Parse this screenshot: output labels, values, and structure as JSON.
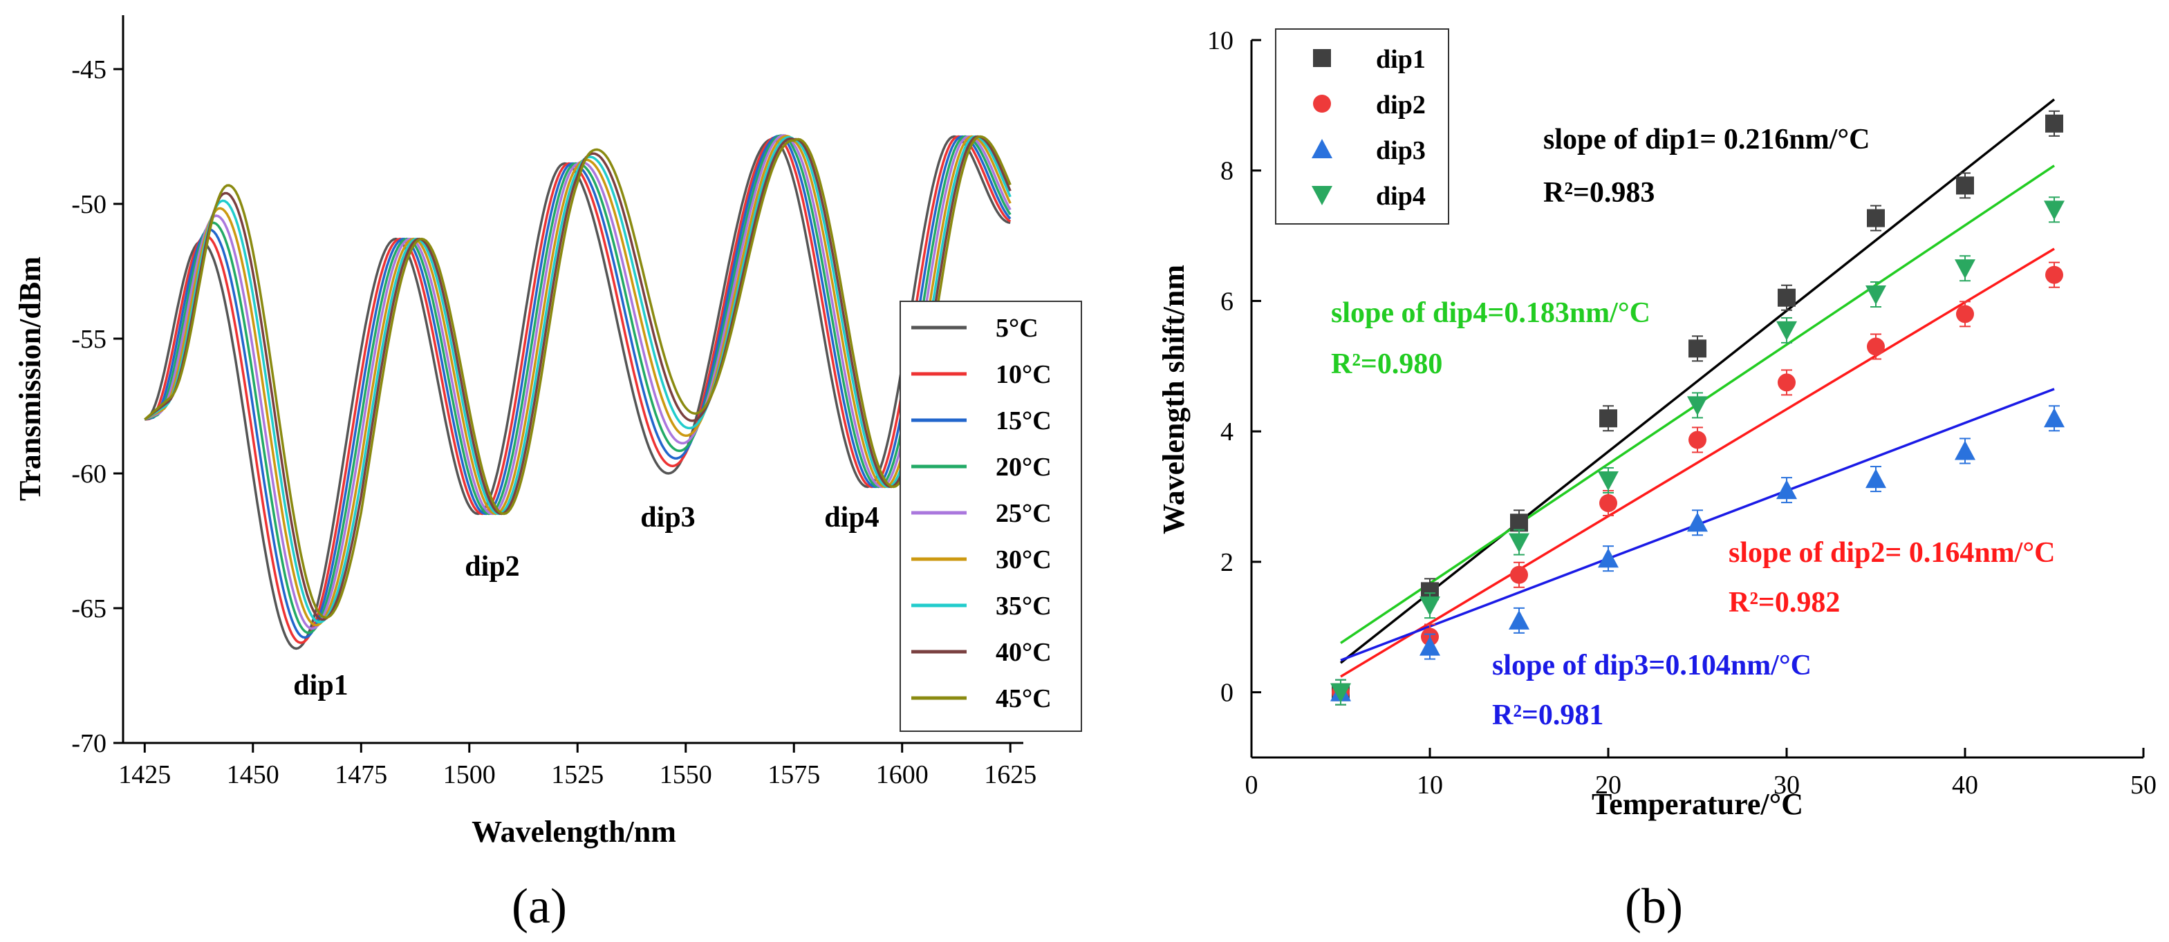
{
  "colors": {
    "dip1": "#404040",
    "dip2": "#ee3a3a",
    "dip3": "#2a72dd",
    "dip4": "#2aa860",
    "fit1": "#000000",
    "fit2": "#ff1a1a",
    "fit3": "#1a1ae6",
    "fit4": "#22cc22"
  },
  "panels": {
    "a": {
      "label": "(a)"
    },
    "b": {
      "label": "(b)"
    }
  },
  "chart_data": [
    {
      "type": "line",
      "xlabel": "Wavelength/nm",
      "ylabel": "Transmission/dBm",
      "xlim": [
        1420,
        1628
      ],
      "ylim": [
        -70,
        -43
      ],
      "xticks": [
        1425,
        1450,
        1475,
        1500,
        1525,
        1550,
        1575,
        1600,
        1625
      ],
      "yticks": [
        -70,
        -65,
        -60,
        -55,
        -50,
        -45
      ],
      "legend": "right",
      "annotations": [
        "dip1",
        "dip2",
        "dip3",
        "dip4"
      ],
      "series": [
        {
          "name": "5°C",
          "color": "#555555",
          "shift": 0.0
        },
        {
          "name": "10°C",
          "color": "#ee3333",
          "shift": 1.0
        },
        {
          "name": "15°C",
          "color": "#2266cc",
          "shift": 1.8
        },
        {
          "name": "20°C",
          "color": "#22aa66",
          "shift": 2.6
        },
        {
          "name": "25°C",
          "color": "#aa77dd",
          "shift": 3.3
        },
        {
          "name": "30°C",
          "color": "#cc9911",
          "shift": 4.1
        },
        {
          "name": "35°C",
          "color": "#22cccc",
          "shift": 4.8
        },
        {
          "name": "40°C",
          "color": "#7a4040",
          "shift": 5.4
        },
        {
          "name": "45°C",
          "color": "#8a8a10",
          "shift": 6.0
        }
      ],
      "base_shape": {
        "peaks": [
          [
            1425,
            -58.0
          ],
          [
            1438,
            -51.4
          ],
          [
            1483,
            -51.3
          ],
          [
            1522,
            -48.5
          ],
          [
            1570,
            -47.6
          ],
          [
            1612,
            -47.5
          ],
          [
            1625,
            -50.7
          ]
        ],
        "dips": [
          [
            1460,
            -66.5
          ],
          [
            1502,
            -61.5
          ],
          [
            1546,
            -60.0
          ],
          [
            1592,
            -60.5
          ]
        ]
      }
    },
    {
      "type": "scatter",
      "xlabel": "Temperature/°C",
      "ylabel": "Wavelength shift/nm",
      "xlim": [
        0,
        50
      ],
      "ylim": [
        -1,
        10
      ],
      "xticks": [
        0,
        10,
        20,
        30,
        40,
        50
      ],
      "yticks": [
        0,
        2,
        4,
        6,
        8,
        10
      ],
      "legend": "top-left",
      "x": [
        5,
        10,
        15,
        20,
        25,
        30,
        35,
        40,
        45
      ],
      "series": [
        {
          "name": "dip1",
          "marker": "square",
          "values": [
            0,
            1.55,
            2.6,
            4.2,
            5.27,
            6.05,
            7.27,
            7.77,
            8.72
          ],
          "fit_slope": 0.216,
          "fit_intercept": -0.63,
          "fit_label": "slope of dip1= 0.216nm/°C",
          "r2": "R²=0.983"
        },
        {
          "name": "dip2",
          "marker": "circle",
          "values": [
            0,
            0.85,
            1.8,
            2.9,
            3.87,
            4.75,
            5.3,
            5.8,
            6.4
          ],
          "fit_slope": 0.164,
          "fit_intercept": -0.58,
          "fit_label": "slope of dip2= 0.164nm/°C",
          "r2": "R²=0.982"
        },
        {
          "name": "dip3",
          "marker": "triangle-up",
          "values": [
            0,
            0.7,
            1.1,
            2.05,
            2.6,
            3.1,
            3.27,
            3.7,
            4.2
          ],
          "fit_slope": 0.104,
          "fit_intercept": -0.03,
          "fit_label": "slope of dip3=0.104nm/°C",
          "r2": "R²=0.981"
        },
        {
          "name": "dip4",
          "marker": "triangle-down",
          "values": [
            0,
            1.33,
            2.3,
            3.25,
            4.4,
            5.55,
            6.1,
            6.5,
            7.4
          ],
          "fit_slope": 0.183,
          "fit_intercept": -0.16,
          "fit_label": "slope of dip4=0.183nm/°C",
          "r2": "R²=0.980"
        }
      ]
    }
  ]
}
